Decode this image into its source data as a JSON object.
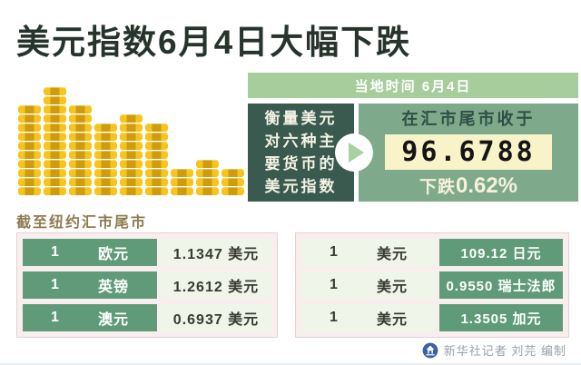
{
  "title": "美元指数6月4日大幅下跌",
  "panel": {
    "header": "当地时间 6月4日",
    "description_lines": [
      "衡量美元",
      "对六种主",
      "要货币的",
      "美元指数"
    ],
    "result": {
      "closing_label": "在汇市尾市收于",
      "closing_value": "96.6788",
      "change_label": "下跌",
      "change_value": "0.62%"
    }
  },
  "chart_data": [
    {
      "type": "bar",
      "title": "美元指数走势（金币堆积象形图，无坐标轴）",
      "values": [
        10,
        12,
        10,
        8,
        9,
        8,
        3,
        4,
        3
      ],
      "unit": "coins-per-stack",
      "legend_position": "none",
      "grid": false
    },
    {
      "type": "table",
      "title": "截至纽约汇市尾市汇率",
      "rows": [
        [
          "1 欧元",
          "1.1347 美元"
        ],
        [
          "1 英镑",
          "1.2612 美元"
        ],
        [
          "1 澳元",
          "0.6937 美元"
        ],
        [
          "1 美元",
          "109.12 日元"
        ],
        [
          "1 美元",
          "0.9550 瑞士法郎"
        ],
        [
          "1 美元",
          "1.3505 加元"
        ]
      ]
    }
  ],
  "section_label": "截至纽约汇市尾市",
  "tables": {
    "left": {
      "rows": [
        {
          "amount": "1",
          "currency": "欧元",
          "value": "1.1347 美元"
        },
        {
          "amount": "1",
          "currency": "英镑",
          "value": "1.2612 美元"
        },
        {
          "amount": "1",
          "currency": "澳元",
          "value": "0.6937 美元"
        }
      ]
    },
    "right": {
      "rows": [
        {
          "amount": "1",
          "currency": "美元",
          "value": "109.12 日元"
        },
        {
          "amount": "1",
          "currency": "美元",
          "value": "0.9550 瑞士法郎"
        },
        {
          "amount": "1",
          "currency": "美元",
          "value": "1.3505 加元"
        }
      ]
    }
  },
  "credit": {
    "text": "新华社记者 刘芫 编制"
  },
  "colors": {
    "header_green": "#a7cd9d",
    "dark_teal_box": "#3a5a50",
    "panel_green": "#7eaa8b",
    "value_box_yellow": "#f9f3c9",
    "table_green_cell": "#5f9b78",
    "table_light_cell": "#eff5e8",
    "table_frame_pink": "#f8eeee",
    "coin_gold": "#f6c41d",
    "coin_band": "#cf9c10",
    "section_label_brown": "#8d7b50",
    "title_text": "#26342c",
    "logo_blue": "#3c5fa8"
  }
}
